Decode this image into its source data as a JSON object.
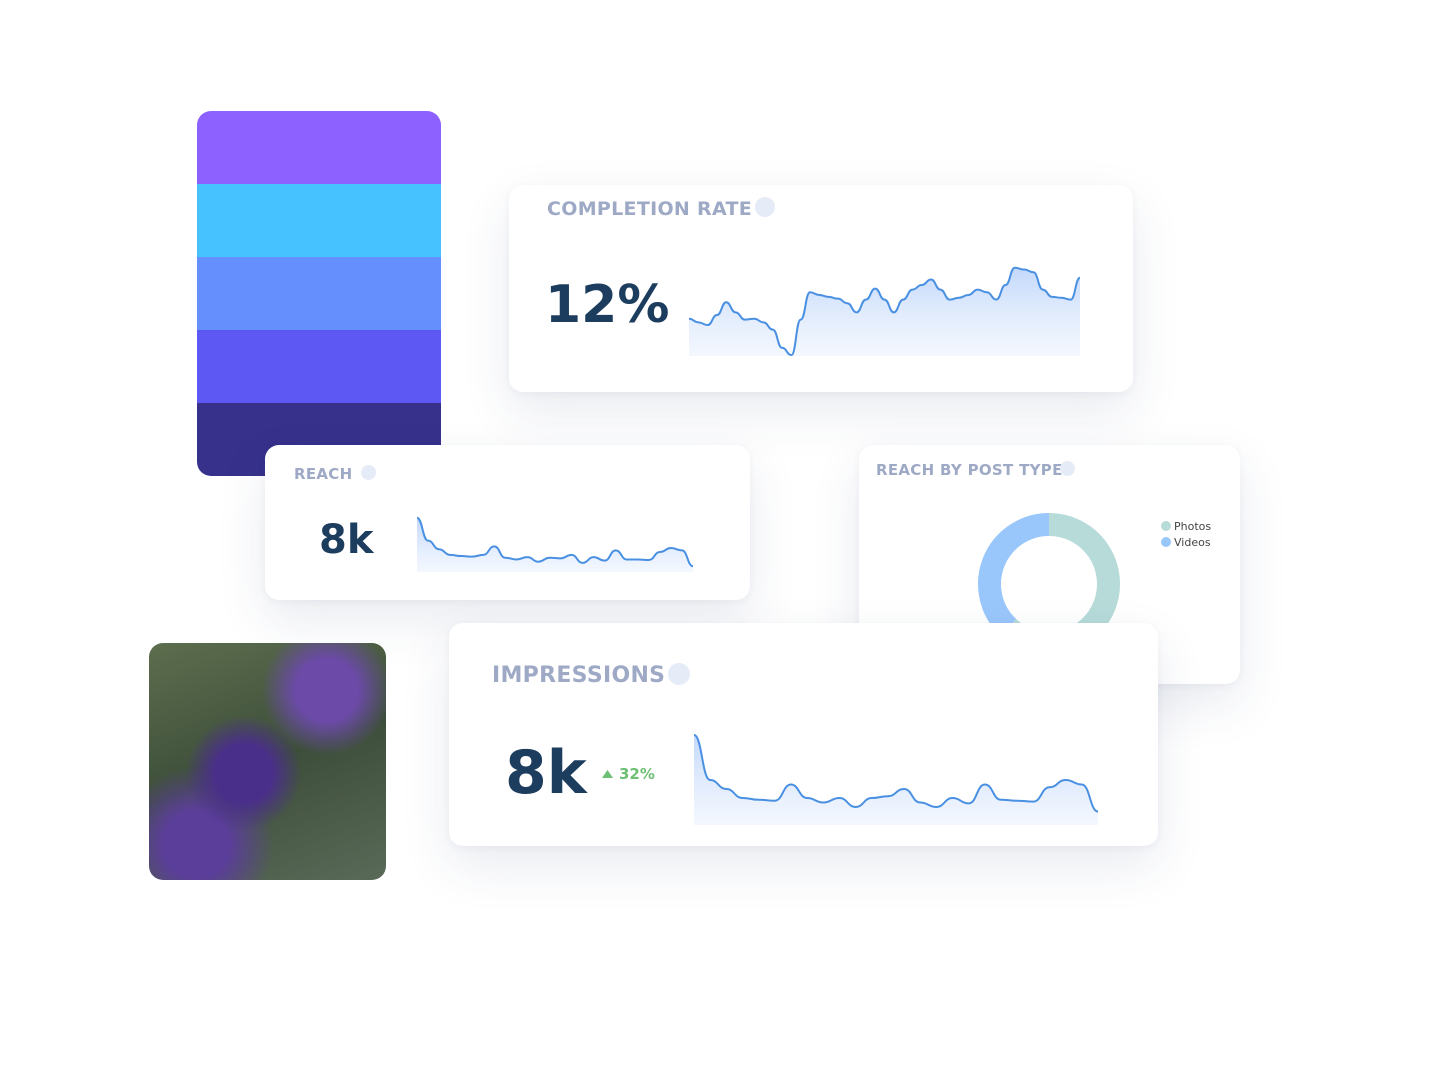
{
  "chart_data": [
    {
      "type": "line",
      "title": "COMPLETION RATE",
      "headline": "12%",
      "color": "#4a90e2",
      "values": [
        41,
        37,
        34,
        45,
        59,
        48,
        40,
        41,
        37,
        29,
        9,
        1,
        40,
        70,
        67,
        65,
        63,
        58,
        48,
        62,
        74,
        62,
        48,
        62,
        73,
        78,
        84,
        73,
        62,
        64,
        67,
        73,
        70,
        62,
        78,
        97,
        95,
        92,
        73,
        65,
        64,
        62,
        86
      ],
      "ylim": [
        0,
        100
      ]
    },
    {
      "type": "line",
      "title": "REACH",
      "headline": "8k",
      "color": "#4a90e2",
      "values": [
        95,
        55,
        40,
        30,
        28,
        27,
        30,
        45,
        25,
        22,
        26,
        18,
        25,
        24,
        30,
        16,
        26,
        20,
        38,
        22,
        22,
        21,
        35,
        42,
        38,
        10
      ],
      "ylim": [
        0,
        100
      ]
    },
    {
      "type": "pie",
      "title": "REACH BY POST TYPE",
      "categories": [
        "Photos",
        "Videos"
      ],
      "values": [
        62,
        38
      ],
      "colors": [
        "#b7dbd9",
        "#9ac7fb"
      ]
    },
    {
      "type": "line",
      "title": "IMPRESSIONS",
      "headline": "8k",
      "change": "32%",
      "color": "#4a90e2",
      "values": [
        100,
        50,
        40,
        30,
        28,
        27,
        45,
        30,
        25,
        30,
        20,
        30,
        32,
        40,
        25,
        20,
        30,
        24,
        45,
        28,
        27,
        26,
        42,
        50,
        45,
        15
      ],
      "ylim": [
        0,
        100
      ]
    }
  ]
}
